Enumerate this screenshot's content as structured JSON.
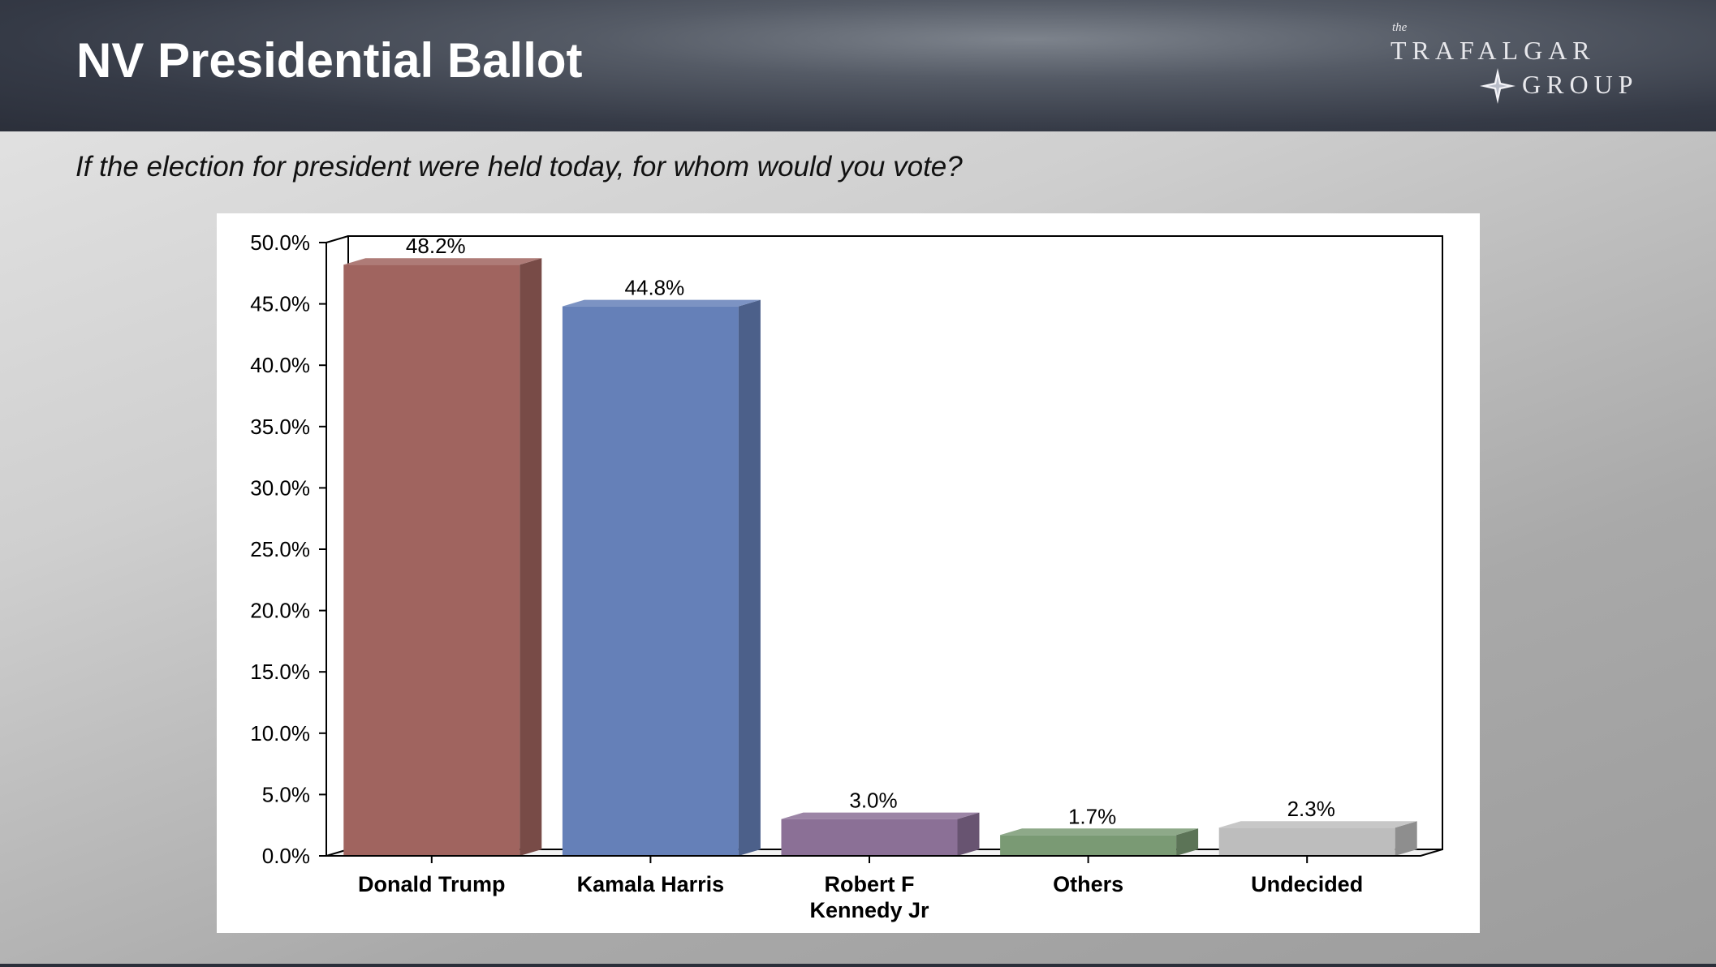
{
  "header": {
    "title": "NV Presidential Ballot",
    "logo_text": "the TRAFALGAR GROUP"
  },
  "question": "If the election for president were held today, for whom would you vote?",
  "chart_data": {
    "type": "bar",
    "style": "3d",
    "categories": [
      "Donald Trump",
      "Kamala Harris",
      "Robert F Kennedy Jr",
      "Others",
      "Undecided"
    ],
    "category_lines": [
      [
        "Donald Trump"
      ],
      [
        "Kamala Harris"
      ],
      [
        "Robert F",
        "Kennedy Jr"
      ],
      [
        "Others"
      ],
      [
        "Undecided"
      ]
    ],
    "values": [
      48.2,
      44.8,
      3.0,
      1.7,
      2.3
    ],
    "data_labels": [
      "48.2%",
      "44.8%",
      "3.0%",
      "1.7%",
      "2.3%"
    ],
    "colors": [
      "#A0645F",
      "#6580B8",
      "#8B7096",
      "#7A9A74",
      "#BDBDBD"
    ],
    "ylim": [
      0,
      50
    ],
    "yticks": [
      0,
      5,
      10,
      15,
      20,
      25,
      30,
      35,
      40,
      45,
      50
    ],
    "ytick_labels": [
      "0.0%",
      "5.0%",
      "10.0%",
      "15.0%",
      "20.0%",
      "25.0%",
      "30.0%",
      "35.0%",
      "40.0%",
      "45.0%",
      "50.0%"
    ],
    "grid": false,
    "legend": "none"
  }
}
